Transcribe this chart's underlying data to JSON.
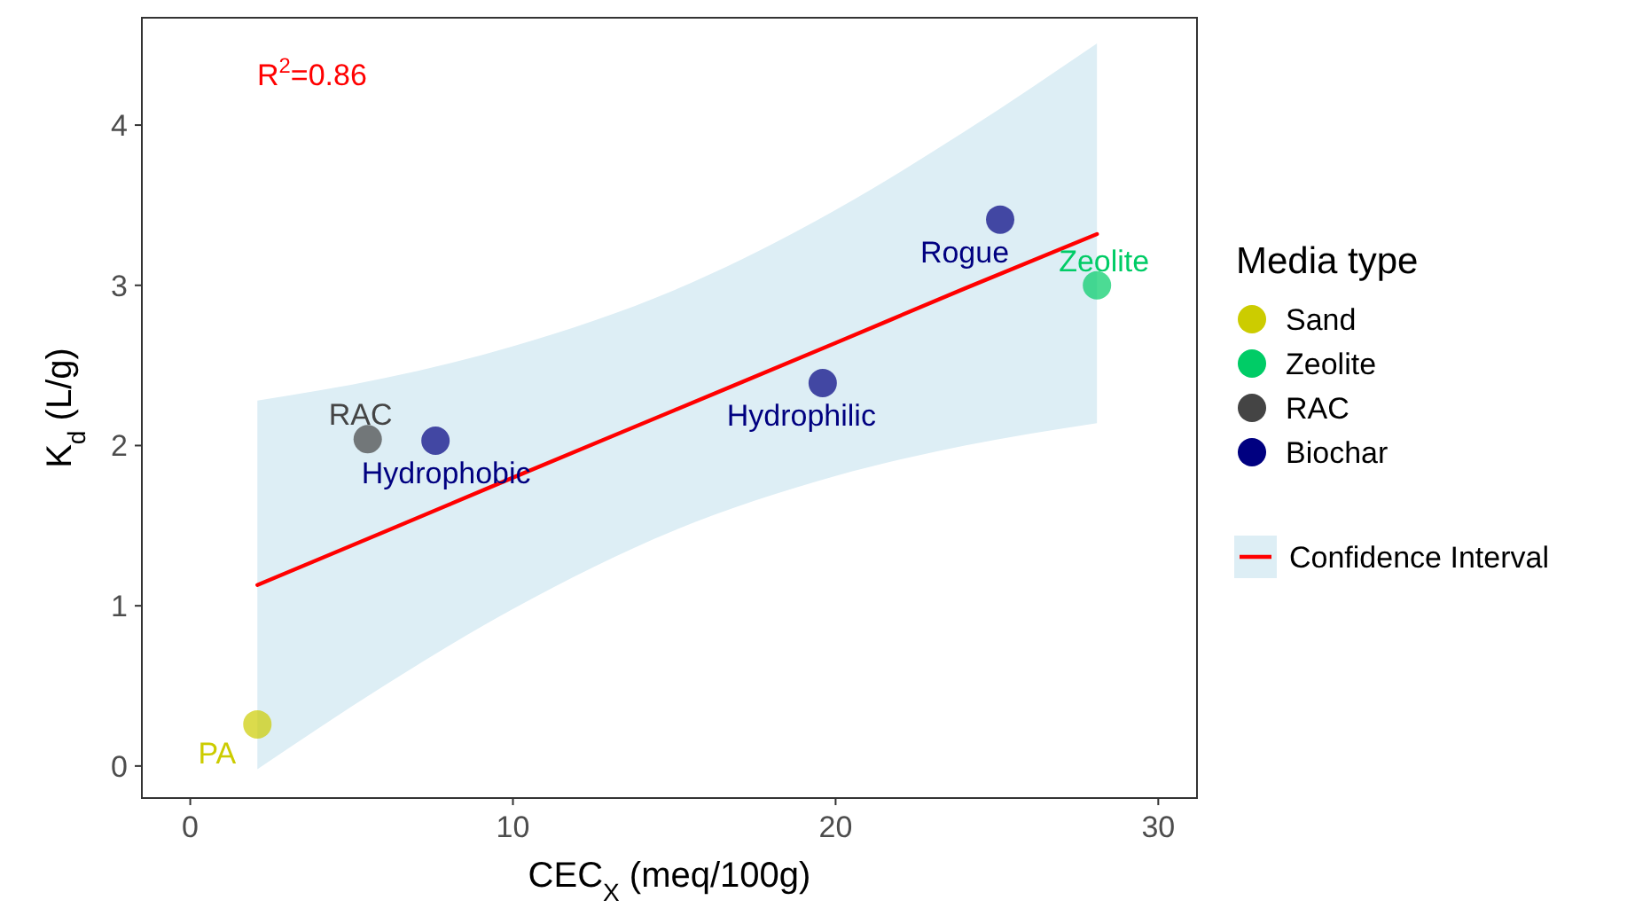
{
  "chart_data": {
    "type": "scatter",
    "xlabel": "CEC$_{X}$ (meq/100g)",
    "ylabel": "K$_{d}$ (L/g)",
    "legend_title": "Media type",
    "legend": "right",
    "grid": false,
    "marker": "circle",
    "xlim": [
      -1.5,
      31.2
    ],
    "ylim": [
      -0.2,
      4.67
    ],
    "xticks": [
      0,
      10,
      20,
      30
    ],
    "yticks": [
      0,
      1,
      2,
      3,
      4
    ],
    "series": [
      {
        "name": "Sand",
        "color": "#cccc00",
        "x": [
          2.08
        ],
        "values": [
          0.26
        ]
      },
      {
        "name": "Zeolite",
        "color": "#00cc66",
        "x": [
          28.1
        ],
        "values": [
          3.0
        ]
      },
      {
        "name": "RAC",
        "color": "#444444",
        "x": [
          5.5
        ],
        "values": [
          2.04
        ]
      },
      {
        "name": "Biochar",
        "color": "#000080",
        "x": [
          7.6,
          19.6,
          25.1
        ],
        "values": [
          2.03,
          2.39,
          3.41
        ]
      },
      {
        "name": "Confidence Interval",
        "type": "line",
        "marker": "none",
        "color": "#ff0000",
        "x": [
          2.08,
          6,
          10,
          15,
          20,
          24,
          28.1
        ],
        "values": [
          1.13,
          1.46,
          1.8,
          2.22,
          2.64,
          2.98,
          3.32
        ],
        "lower": [
          -0.02,
          0.5,
          0.98,
          1.47,
          1.81,
          2.0,
          2.14
        ],
        "upper": [
          2.28,
          2.42,
          2.62,
          2.97,
          3.47,
          3.96,
          4.51
        ]
      }
    ],
    "annotations": [
      "R$^{2}$=0.86",
      {
        "text": "PA",
        "x": 2.08,
        "y": 0.26
      },
      {
        "text": "Zeolite",
        "x": 28.1,
        "y": 3.0
      },
      {
        "text": "RAC",
        "x": 5.5,
        "y": 2.04
      },
      {
        "text": "Hydrophobic",
        "x": 7.6,
        "y": 2.03
      },
      {
        "text": "Hydrophilic",
        "x": 19.6,
        "y": 2.39
      },
      {
        "text": "Rogue",
        "x": 25.1,
        "y": 3.41
      }
    ]
  }
}
